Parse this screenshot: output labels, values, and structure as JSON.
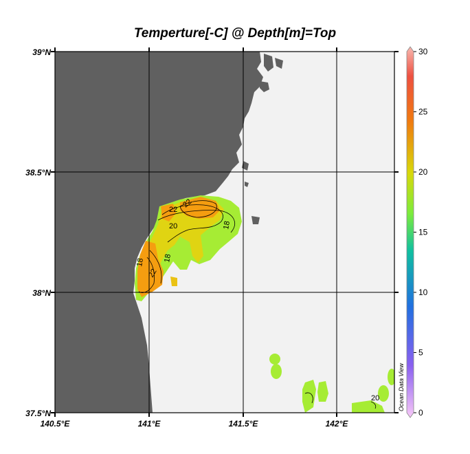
{
  "title": "Temperture[-C] @ Depth[m]=Top",
  "lat_labels": [
    "39°N",
    "38.5°N",
    "38°N",
    "37.5°N"
  ],
  "lon_labels": [
    "140.5°E",
    "141°E",
    "141.5°E",
    "142°E"
  ],
  "colorbar": {
    "min": 0,
    "max": 30,
    "tick_labels": [
      "30",
      "25",
      "20",
      "15",
      "10",
      "5",
      "0"
    ],
    "colors": [
      "#f8b8b0",
      "#ee5040",
      "#f07a10",
      "#d8d80a",
      "#7cec3c",
      "#10c0a0",
      "#2070e0",
      "#8a60f0",
      "#f8c8f8"
    ]
  },
  "contour_labels": [
    "22",
    "20",
    "22",
    "18",
    "18",
    "18",
    "22",
    "20"
  ],
  "credit": "Ocean Data View",
  "colors": {
    "land": "#606060",
    "ocean_blank": "#f2f2f2",
    "warm": "#f59d10",
    "mid": "#e0d010",
    "cool": "#a0ec30"
  }
}
